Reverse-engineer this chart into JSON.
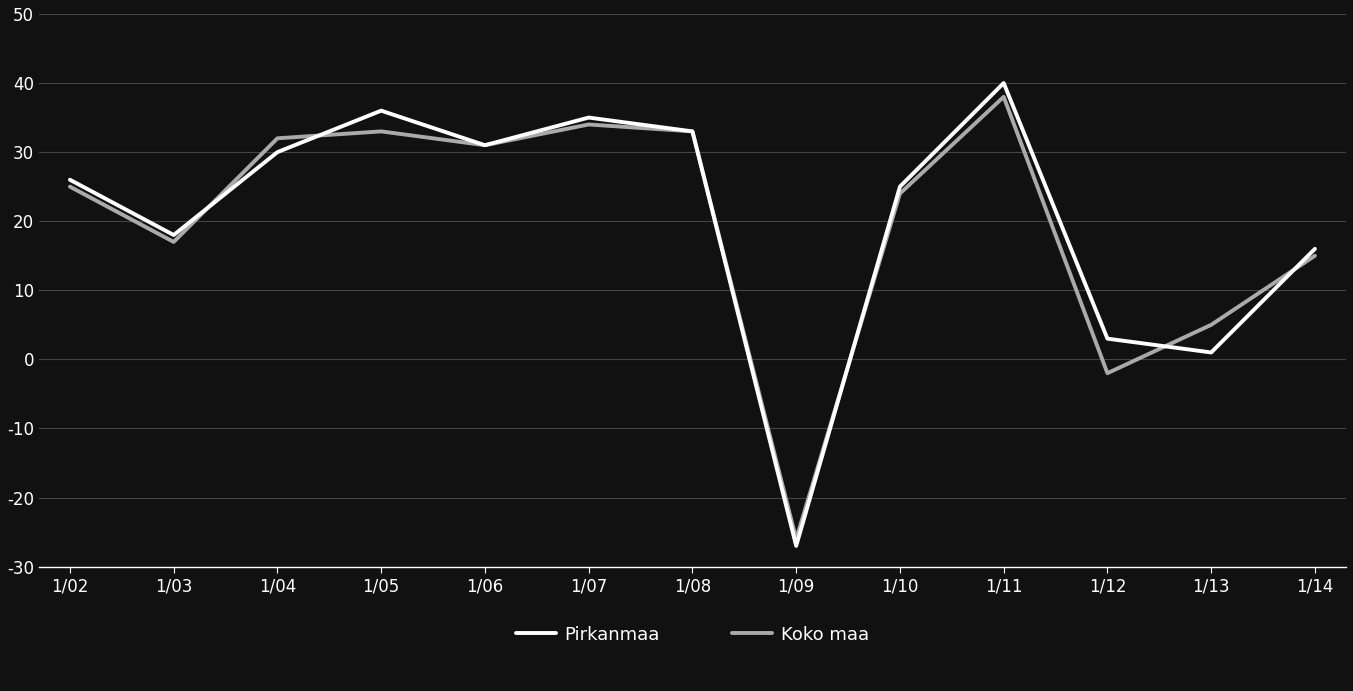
{
  "x_labels": [
    "1/02",
    "1/03",
    "1/04",
    "1/05",
    "1/06",
    "1/07",
    "1/08",
    "1/09",
    "1/10",
    "1/11",
    "1/12",
    "1/13",
    "1/14"
  ],
  "pirkanmaa": [
    26,
    18,
    30,
    36,
    31,
    35,
    33,
    -27,
    25,
    40,
    3,
    1,
    16
  ],
  "koko_maa": [
    25,
    17,
    32,
    33,
    31,
    34,
    33,
    -26,
    24,
    38,
    -2,
    5,
    15
  ],
  "ylim": [
    -30,
    50
  ],
  "yticks": [
    -30,
    -20,
    -10,
    0,
    10,
    20,
    30,
    40,
    50
  ],
  "background_color": "#111111",
  "line_color_pirkanmaa": "#ffffff",
  "line_color_koko_maa": "#aaaaaa",
  "grid_color": "#444444",
  "text_color": "#ffffff",
  "legend_pirkanmaa": "Pirkanmaa",
  "legend_koko_maa": "Koko maa",
  "line_width": 2.8
}
